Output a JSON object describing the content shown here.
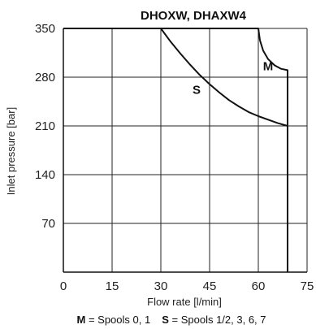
{
  "chart_data": {
    "type": "line",
    "title": "DHOXW, DHAXW4",
    "xlabel": "Flow rate [l/min]",
    "ylabel": "Inlet pressure [bar]",
    "xlim": [
      0,
      75
    ],
    "ylim": [
      0,
      350
    ],
    "xticks": [
      0,
      15,
      30,
      45,
      60,
      75
    ],
    "yticks": [
      70,
      140,
      210,
      280,
      350
    ],
    "grid": true,
    "series": [
      {
        "name": "S",
        "color": "#111111",
        "points": [
          [
            0,
            350
          ],
          [
            30,
            350
          ],
          [
            33,
            331
          ],
          [
            36,
            314
          ],
          [
            39,
            298
          ],
          [
            42,
            283
          ],
          [
            45,
            270
          ],
          [
            48,
            258
          ],
          [
            51,
            247
          ],
          [
            54,
            238
          ],
          [
            57,
            230
          ],
          [
            60,
            224
          ],
          [
            63,
            219
          ],
          [
            66,
            214
          ],
          [
            69,
            210
          ],
          [
            69,
            0
          ]
        ]
      },
      {
        "name": "M",
        "color": "#111111",
        "points": [
          [
            0,
            350
          ],
          [
            60,
            350
          ],
          [
            60.5,
            333
          ],
          [
            61.5,
            318
          ],
          [
            63,
            306
          ],
          [
            65,
            297
          ],
          [
            67,
            292
          ],
          [
            69,
            290
          ],
          [
            69,
            0
          ]
        ]
      }
    ],
    "series_label_positions": [
      {
        "name": "S",
        "x": 41,
        "y": 262
      },
      {
        "name": "M",
        "x": 63,
        "y": 296
      }
    ],
    "caption": {
      "m_key": "M",
      "m_text": " = Spools 0, 1",
      "s_key": "S",
      "s_text": " = Spools 1/2, 3, 6, 7"
    }
  }
}
